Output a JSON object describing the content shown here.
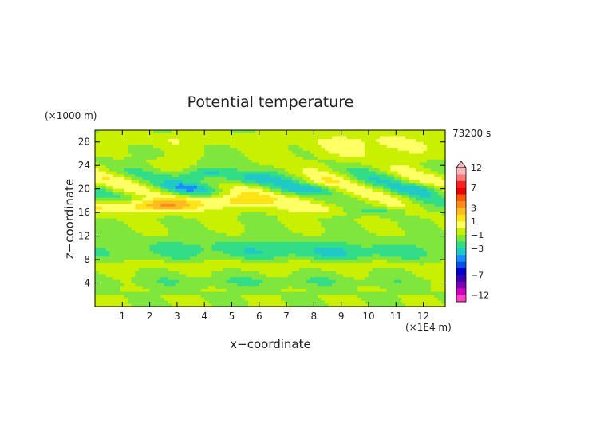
{
  "chart_data": {
    "type": "heatmap",
    "title": "Potential temperature",
    "xlabel": "x−coordinate",
    "ylabel": "z−coordinate",
    "x_unit": "(×1E4 m)",
    "y_unit": "(×1000 m)",
    "time_label": "73200 s",
    "xlim": [
      0,
      12.8
    ],
    "ylim": [
      0,
      30
    ],
    "x_ticks": [
      1,
      2,
      3,
      4,
      5,
      6,
      7,
      8,
      9,
      10,
      11,
      12
    ],
    "y_ticks": [
      4,
      8,
      12,
      16,
      20,
      24,
      28
    ],
    "colorbar_labels": [
      "12",
      "7",
      "3",
      "1",
      "−1",
      "−3",
      "−7",
      "−12"
    ],
    "colorbar_label_levels": [
      12,
      7,
      3,
      1,
      -1,
      -3,
      -7,
      -12
    ],
    "colorbar_levels": [
      12,
      10,
      8,
      7,
      5,
      4,
      3,
      2,
      1,
      0,
      -1,
      -2,
      -3,
      -4,
      -5,
      -6,
      -7,
      -9,
      -11,
      -12
    ],
    "colorbar_colors": [
      "#ffb6c1",
      "#ff7b7b",
      "#ff2020",
      "#e60000",
      "#ff5a00",
      "#ff8c1a",
      "#ffbb22",
      "#ffe41a",
      "#ffff66",
      "#c8f000",
      "#7ee63c",
      "#33dd88",
      "#20c8c8",
      "#1a8cff",
      "#0a50e6",
      "#0000cc",
      "#3a00b4",
      "#7a00b4",
      "#d000c0",
      "#ff3ec8"
    ],
    "grid": false,
    "legend": "right"
  }
}
